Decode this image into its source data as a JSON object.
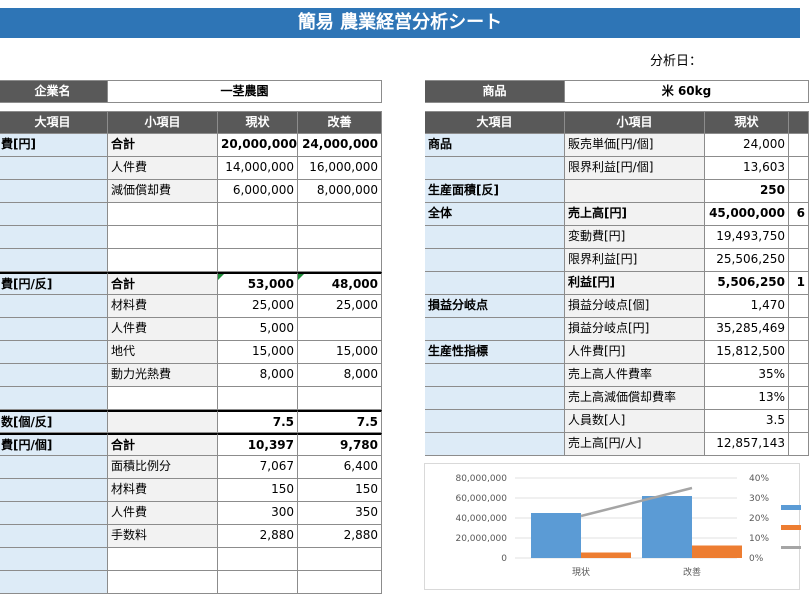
{
  "title": "簡易 農業経営分析シート",
  "date_label": "分析日：",
  "left": {
    "company_label": "企業名",
    "company_value": "一茎農園",
    "headers": [
      "大項目",
      "小項目",
      "現状",
      "改善"
    ],
    "rows": [
      {
        "cat": "費[円]",
        "sub": "合計",
        "cur": "20,000,000",
        "imp": "24,000,000",
        "bold": true
      },
      {
        "cat": "",
        "sub": "人件費",
        "cur": "14,000,000",
        "imp": "16,000,000"
      },
      {
        "cat": "",
        "sub": "減価償却費",
        "cur": "6,000,000",
        "imp": "8,000,000"
      },
      {
        "cat": "",
        "sub": "",
        "cur": "",
        "imp": ""
      },
      {
        "cat": "",
        "sub": "",
        "cur": "",
        "imp": ""
      },
      {
        "cat": "",
        "sub": "",
        "cur": "",
        "imp": ""
      },
      {
        "cat": "費[円/反]",
        "sub": "合計",
        "cur": "53,000",
        "imp": "48,000",
        "bold": true
      },
      {
        "cat": "",
        "sub": "材料費",
        "cur": "25,000",
        "imp": "25,000"
      },
      {
        "cat": "",
        "sub": "人件費",
        "cur": "5,000",
        "imp": ""
      },
      {
        "cat": "",
        "sub": "地代",
        "cur": "15,000",
        "imp": "15,000"
      },
      {
        "cat": "",
        "sub": "動力光熱費",
        "cur": "8,000",
        "imp": "8,000"
      },
      {
        "cat": "",
        "sub": "",
        "cur": "",
        "imp": ""
      },
      {
        "cat": "数[個/反]",
        "sub": "",
        "cur": "7.5",
        "imp": "7.5",
        "bold": true
      },
      {
        "cat": "費[円/個]",
        "sub": "合計",
        "cur": "10,397",
        "imp": "9,780",
        "bold": true
      },
      {
        "cat": "",
        "sub": "面積比例分",
        "cur": "7,067",
        "imp": "6,400"
      },
      {
        "cat": "",
        "sub": "材料費",
        "cur": "150",
        "imp": "150"
      },
      {
        "cat": "",
        "sub": "人件費",
        "cur": "300",
        "imp": "350"
      },
      {
        "cat": "",
        "sub": "手数料",
        "cur": "2,880",
        "imp": "2,880"
      },
      {
        "cat": "",
        "sub": "",
        "cur": "",
        "imp": ""
      },
      {
        "cat": "",
        "sub": "",
        "cur": "",
        "imp": ""
      }
    ]
  },
  "right": {
    "product_label": "商品",
    "product_value": "米 60kg",
    "headers": [
      "大項目",
      "小項目",
      "現状",
      ""
    ],
    "rows": [
      {
        "cat": "商品",
        "sub": "販売単価[円/個]",
        "cur": "24,000",
        "imp": ""
      },
      {
        "cat": "",
        "sub": "限界利益[円/個]",
        "cur": "13,603",
        "imp": ""
      },
      {
        "cat": "生産面積[反]",
        "sub": "",
        "cur": "250",
        "imp": "",
        "bold": true
      },
      {
        "cat": "全体",
        "sub": "売上高[円]",
        "cur": "45,000,000",
        "imp": "6",
        "bold": true
      },
      {
        "cat": "",
        "sub": "変動費[円]",
        "cur": "19,493,750",
        "imp": ""
      },
      {
        "cat": "",
        "sub": "限界利益[円]",
        "cur": "25,506,250",
        "imp": ""
      },
      {
        "cat": "",
        "sub": "利益[円]",
        "cur": "5,506,250",
        "imp": "1",
        "bold": true
      },
      {
        "cat": "損益分岐点",
        "sub": "損益分岐点[個]",
        "cur": "1,470",
        "imp": ""
      },
      {
        "cat": "",
        "sub": "損益分岐点[円]",
        "cur": "35,285,469",
        "imp": ""
      },
      {
        "cat": "生産性指標",
        "sub": "人件費[円]",
        "cur": "15,812,500",
        "imp": ""
      },
      {
        "cat": "",
        "sub": "売上高人件費率",
        "cur": "35%",
        "imp": ""
      },
      {
        "cat": "",
        "sub": "売上高減価償却費率",
        "cur": "13%",
        "imp": ""
      },
      {
        "cat": "",
        "sub": "人員数[人]",
        "cur": "3.5",
        "imp": ""
      },
      {
        "cat": "",
        "sub": "売上高[円/人]",
        "cur": "12,857,143",
        "imp": ""
      }
    ]
  },
  "chart_data": {
    "type": "bar",
    "categories": [
      "現状",
      "改善"
    ],
    "series": [
      {
        "values": [
          45000000,
          62000000
        ],
        "color": "#5b9bd5",
        "axis": "left"
      },
      {
        "values": [
          5500000,
          12500000
        ],
        "color": "#ed7d31",
        "axis": "left"
      },
      {
        "type": "line",
        "values": [
          0.21,
          0.35
        ],
        "color": "#a5a5a5",
        "axis": "right"
      }
    ],
    "ylim": [
      0,
      80000000
    ],
    "y_ticks": [
      "80,000,000",
      "60,000,000",
      "40,000,000",
      "20,000,000",
      "0"
    ],
    "y2lim": [
      0,
      0.4
    ],
    "y2_ticks": [
      "40%",
      "30%",
      "20%",
      "10%",
      "0%"
    ]
  }
}
